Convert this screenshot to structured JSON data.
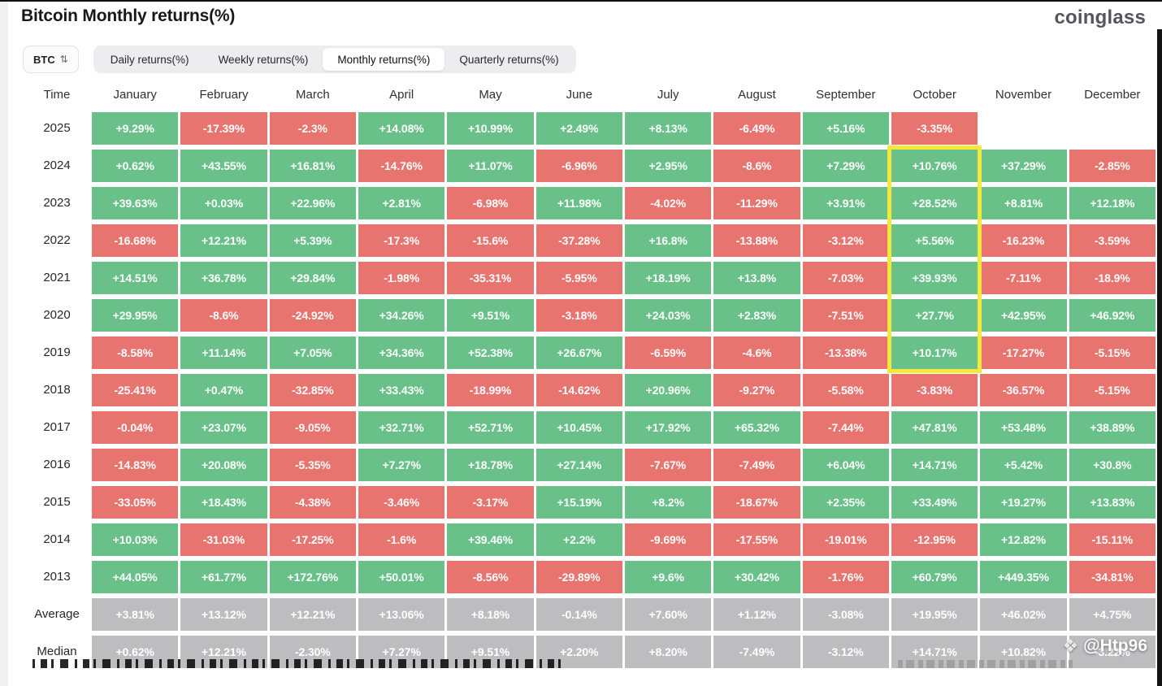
{
  "header": {
    "title": "Bitcoin Monthly returns(%)",
    "brand": "coinglass"
  },
  "icons": {
    "sort_arrows": "⇅",
    "diamond": "❖"
  },
  "controls": {
    "symbol": {
      "label": "BTC"
    },
    "tabs": [
      {
        "label": "Daily returns(%)",
        "active": false
      },
      {
        "label": "Weekly returns(%)",
        "active": false
      },
      {
        "label": "Monthly returns(%)",
        "active": true
      },
      {
        "label": "Quarterly returns(%)",
        "active": false
      }
    ]
  },
  "watermark": {
    "handle": "@Htp96"
  },
  "chart_data": {
    "type": "heatmap",
    "title": "Bitcoin Monthly returns(%)",
    "columns": [
      "Time",
      "January",
      "February",
      "March",
      "April",
      "May",
      "June",
      "July",
      "August",
      "September",
      "October",
      "November",
      "December"
    ],
    "rows": [
      {
        "label": "2025",
        "kind": "year",
        "values": [
          "+9.29%",
          "-17.39%",
          "-2.3%",
          "+14.08%",
          "+10.99%",
          "+2.49%",
          "+8.13%",
          "-6.49%",
          "+5.16%",
          "-3.35%",
          null,
          null
        ]
      },
      {
        "label": "2024",
        "kind": "year",
        "values": [
          "+0.62%",
          "+43.55%",
          "+16.81%",
          "-14.76%",
          "+11.07%",
          "-6.96%",
          "+2.95%",
          "-8.6%",
          "+7.29%",
          "+10.76%",
          "+37.29%",
          "-2.85%"
        ]
      },
      {
        "label": "2023",
        "kind": "year",
        "values": [
          "+39.63%",
          "+0.03%",
          "+22.96%",
          "+2.81%",
          "-6.98%",
          "+11.98%",
          "-4.02%",
          "-11.29%",
          "+3.91%",
          "+28.52%",
          "+8.81%",
          "+12.18%"
        ]
      },
      {
        "label": "2022",
        "kind": "year",
        "values": [
          "-16.68%",
          "+12.21%",
          "+5.39%",
          "-17.3%",
          "-15.6%",
          "-37.28%",
          "+16.8%",
          "-13.88%",
          "-3.12%",
          "+5.56%",
          "-16.23%",
          "-3.59%"
        ]
      },
      {
        "label": "2021",
        "kind": "year",
        "values": [
          "+14.51%",
          "+36.78%",
          "+29.84%",
          "-1.98%",
          "-35.31%",
          "-5.95%",
          "+18.19%",
          "+13.8%",
          "-7.03%",
          "+39.93%",
          "-7.11%",
          "-18.9%"
        ]
      },
      {
        "label": "2020",
        "kind": "year",
        "values": [
          "+29.95%",
          "-8.6%",
          "-24.92%",
          "+34.26%",
          "+9.51%",
          "-3.18%",
          "+24.03%",
          "+2.83%",
          "-7.51%",
          "+27.7%",
          "+42.95%",
          "+46.92%"
        ]
      },
      {
        "label": "2019",
        "kind": "year",
        "values": [
          "-8.58%",
          "+11.14%",
          "+7.05%",
          "+34.36%",
          "+52.38%",
          "+26.67%",
          "-6.59%",
          "-4.6%",
          "-13.38%",
          "+10.17%",
          "-17.27%",
          "-5.15%"
        ]
      },
      {
        "label": "2018",
        "kind": "year",
        "values": [
          "-25.41%",
          "+0.47%",
          "-32.85%",
          "+33.43%",
          "-18.99%",
          "-14.62%",
          "+20.96%",
          "-9.27%",
          "-5.58%",
          "-3.83%",
          "-36.57%",
          "-5.15%"
        ]
      },
      {
        "label": "2017",
        "kind": "year",
        "values": [
          "-0.04%",
          "+23.07%",
          "-9.05%",
          "+32.71%",
          "+52.71%",
          "+10.45%",
          "+17.92%",
          "+65.32%",
          "-7.44%",
          "+47.81%",
          "+53.48%",
          "+38.89%"
        ]
      },
      {
        "label": "2016",
        "kind": "year",
        "values": [
          "-14.83%",
          "+20.08%",
          "-5.35%",
          "+7.27%",
          "+18.78%",
          "+27.14%",
          "-7.67%",
          "-7.49%",
          "+6.04%",
          "+14.71%",
          "+5.42%",
          "+30.8%"
        ]
      },
      {
        "label": "2015",
        "kind": "year",
        "values": [
          "-33.05%",
          "+18.43%",
          "-4.38%",
          "-3.46%",
          "-3.17%",
          "+15.19%",
          "+8.2%",
          "-18.67%",
          "+2.35%",
          "+33.49%",
          "+19.27%",
          "+13.83%"
        ]
      },
      {
        "label": "2014",
        "kind": "year",
        "values": [
          "+10.03%",
          "-31.03%",
          "-17.25%",
          "-1.6%",
          "+39.46%",
          "+2.2%",
          "-9.69%",
          "-17.55%",
          "-19.01%",
          "-12.95%",
          "+12.82%",
          "-15.11%"
        ]
      },
      {
        "label": "2013",
        "kind": "year",
        "values": [
          "+44.05%",
          "+61.77%",
          "+172.76%",
          "+50.01%",
          "-8.56%",
          "-29.89%",
          "+9.6%",
          "+30.42%",
          "-1.76%",
          "+60.79%",
          "+449.35%",
          "-34.81%"
        ]
      },
      {
        "label": "Average",
        "kind": "summary",
        "values": [
          "+3.81%",
          "+13.12%",
          "+12.21%",
          "+13.06%",
          "+8.18%",
          "-0.14%",
          "+7.60%",
          "+1.12%",
          "-3.08%",
          "+19.95%",
          "+46.02%",
          "+4.75%"
        ]
      },
      {
        "label": "Median",
        "kind": "summary",
        "values": [
          "+0.62%",
          "+12.21%",
          "-2.30%",
          "+7.27%",
          "+9.51%",
          "+2.20%",
          "+8.20%",
          "-7.49%",
          "-3.12%",
          "+14.71%",
          "+10.82%",
          "-3.22%"
        ]
      }
    ],
    "highlight": {
      "column": "October",
      "from_row": "2024",
      "to_row": "2019",
      "color": "#f3e93d"
    },
    "colors": {
      "positive": "#69c189",
      "negative": "#e87470",
      "summary": "#bdbdc0",
      "highlight": "#f3e93d"
    },
    "legend": "green = positive monthly return, red = negative monthly return, gray = Average/Median summary rows"
  }
}
